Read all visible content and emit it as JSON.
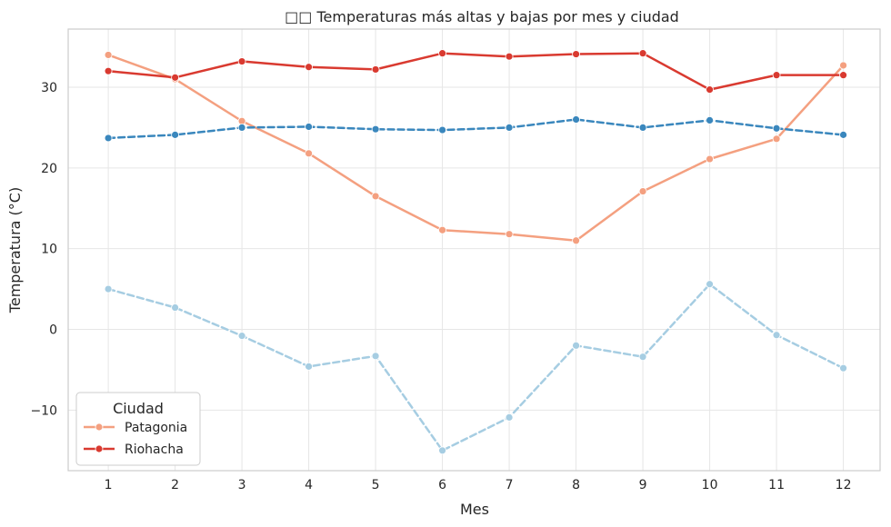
{
  "chart_data": {
    "type": "line",
    "title": "□□ Temperaturas más altas y bajas por mes y ciudad",
    "xlabel": "Mes",
    "ylabel": "Temperatura (°C)",
    "x": [
      1,
      2,
      3,
      4,
      5,
      6,
      7,
      8,
      9,
      10,
      11,
      12
    ],
    "xlim": [
      0.4,
      12.55
    ],
    "ylim": [
      -17.5,
      37.2
    ],
    "yticks": [
      -10,
      0,
      10,
      20,
      30
    ],
    "ytick_labels": [
      "−10",
      "0",
      "10",
      "20",
      "30"
    ],
    "grid": true,
    "legend": {
      "title": "Ciudad",
      "position": "lower-left",
      "entries": [
        "Patagonia",
        "Riohacha"
      ]
    },
    "series": [
      {
        "name": "Patagonia",
        "measure": "max",
        "color": "#f4a080",
        "dash": "solid",
        "values": [
          34.0,
          31.0,
          25.8,
          21.8,
          16.5,
          12.3,
          11.8,
          11.0,
          17.1,
          21.1,
          23.6,
          32.7
        ]
      },
      {
        "name": "Riohacha",
        "measure": "max",
        "color": "#d93a30",
        "dash": "solid",
        "values": [
          32.0,
          31.2,
          33.2,
          32.5,
          32.2,
          34.2,
          33.8,
          34.1,
          34.2,
          29.7,
          31.5,
          31.5
        ]
      },
      {
        "measure": "min",
        "color": "#3a87bd",
        "dash": "dashed",
        "values": [
          23.7,
          24.1,
          25.0,
          25.1,
          24.8,
          24.7,
          25.0,
          26.0,
          25.0,
          25.9,
          24.9,
          24.1
        ]
      },
      {
        "measure": "min",
        "color": "#a6cde2",
        "dash": "dashed",
        "values": [
          5.0,
          2.7,
          -0.8,
          -4.6,
          -3.3,
          -15.0,
          -10.9,
          -2.0,
          -3.4,
          5.6,
          -0.7,
          -4.8
        ]
      }
    ]
  }
}
